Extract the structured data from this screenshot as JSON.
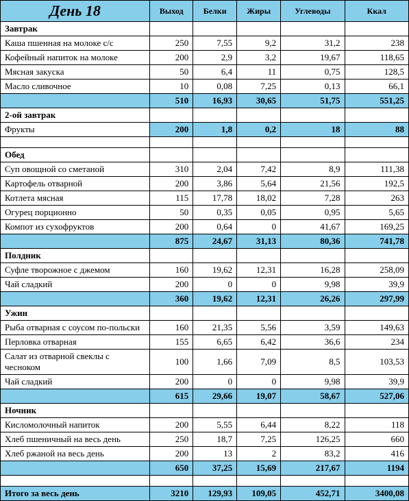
{
  "title": "День 18",
  "columns": [
    "Выход",
    "Белки",
    "Жиры",
    "Углеводы",
    "Ккал"
  ],
  "colors": {
    "highlight_bg": "#87ceeb",
    "border": "#000000",
    "text": "#000000"
  },
  "meals": [
    {
      "name": "Завтрак",
      "items": [
        {
          "name": "Каша пшенная на молоке с/с",
          "vyhod": "250",
          "belki": "7,55",
          "zhiry": "9,2",
          "uglevody": "31,2",
          "kkal": "238"
        },
        {
          "name": "Кофейный напиток на молоке",
          "vyhod": "200",
          "belki": "2,9",
          "zhiry": "3,2",
          "uglevody": "19,67",
          "kkal": "118,65"
        },
        {
          "name": "Мясная закуска",
          "vyhod": "50",
          "belki": "6,4",
          "zhiry": "11",
          "uglevody": "0,75",
          "kkal": "128,5"
        },
        {
          "name": "Масло сливочное",
          "vyhod": "10",
          "belki": "0,08",
          "zhiry": "7,25",
          "uglevody": "0,13",
          "kkal": "66,1"
        }
      ],
      "subtotal": {
        "vyhod": "510",
        "belki": "16,93",
        "zhiry": "30,65",
        "uglevody": "51,75",
        "kkal": "551,25"
      }
    },
    {
      "name": "2-ой завтрак",
      "items": [
        {
          "name": "Фрукты",
          "vyhod": "200",
          "belki": "1,8",
          "zhiry": "0,2",
          "uglevody": "18",
          "kkal": "88",
          "subtotal_style": true
        }
      ],
      "subtotal": null,
      "empty_after": true
    },
    {
      "name": "Обед",
      "items": [
        {
          "name": "Суп овощной со сметаной",
          "vyhod": "310",
          "belki": "2,04",
          "zhiry": "7,42",
          "uglevody": "8,9",
          "kkal": "111,38"
        },
        {
          "name": "Картофель отварной",
          "vyhod": "200",
          "belki": "3,86",
          "zhiry": "5,64",
          "uglevody": "21,56",
          "kkal": "192,5"
        },
        {
          "name": "Котлета мясная",
          "vyhod": "115",
          "belki": "17,78",
          "zhiry": "18,02",
          "uglevody": "7,28",
          "kkal": "263"
        },
        {
          "name": "Огурец  порционно",
          "vyhod": "50",
          "belki": "0,35",
          "zhiry": "0,05",
          "uglevody": "0,95",
          "kkal": "5,65"
        },
        {
          "name": "Компот из сухофруктов",
          "vyhod": "200",
          "belki": "0,64",
          "zhiry": "0",
          "uglevody": "41,67",
          "kkal": "169,25"
        }
      ],
      "subtotal": {
        "vyhod": "875",
        "belki": "24,67",
        "zhiry": "31,13",
        "uglevody": "80,36",
        "kkal": "741,78"
      }
    },
    {
      "name": "Полдник",
      "items": [
        {
          "name": "Суфле творожное с джемом",
          "vyhod": "160",
          "belki": "19,62",
          "zhiry": "12,31",
          "uglevody": "16,28",
          "kkal": "258,09"
        },
        {
          "name": "Чай сладкий",
          "vyhod": "200",
          "belki": "0",
          "zhiry": "0",
          "uglevody": "9,98",
          "kkal": "39,9"
        }
      ],
      "subtotal": {
        "vyhod": "360",
        "belki": "19,62",
        "zhiry": "12,31",
        "uglevody": "26,26",
        "kkal": "297,99"
      }
    },
    {
      "name": "Ужин",
      "items": [
        {
          "name": "Рыба отварная с соусом по-польски",
          "vyhod": "160",
          "belki": "21,35",
          "zhiry": "5,56",
          "uglevody": "3,59",
          "kkal": "149,63"
        },
        {
          "name": "Перловка отварная",
          "vyhod": "155",
          "belki": "6,65",
          "zhiry": "6,42",
          "uglevody": "36,6",
          "kkal": "234"
        },
        {
          "name": "Салат из отварной свеклы с чесноком",
          "vyhod": "100",
          "belki": "1,66",
          "zhiry": "7,09",
          "uglevody": "8,5",
          "kkal": "103,53"
        },
        {
          "name": "Чай сладкий",
          "vyhod": "200",
          "belki": "0",
          "zhiry": "0",
          "uglevody": "9,98",
          "kkal": "39,9"
        }
      ],
      "subtotal": {
        "vyhod": "615",
        "belki": "29,66",
        "zhiry": "19,07",
        "uglevody": "58,67",
        "kkal": "527,06"
      }
    },
    {
      "name": "Ночник",
      "items": [
        {
          "name": "Кисломолочный напиток",
          "vyhod": "200",
          "belki": "5,55",
          "zhiry": "6,44",
          "uglevody": "8,22",
          "kkal": "118"
        },
        {
          "name": "Хлеб пшеничный на весь день",
          "vyhod": "250",
          "belki": "18,7",
          "zhiry": "7,25",
          "uglevody": "126,25",
          "kkal": "660"
        },
        {
          "name": "Хлеб ржаной на весь день",
          "vyhod": "200",
          "belki": "13",
          "zhiry": "2",
          "uglevody": "83,2",
          "kkal": "416"
        }
      ],
      "subtotal": {
        "vyhod": "650",
        "belki": "37,25",
        "zhiry": "15,69",
        "uglevody": "217,67",
        "kkal": "1194"
      },
      "empty_after": true
    }
  ],
  "grand_total": {
    "label": "Итого за весь день",
    "vyhod": "3210",
    "belki": "129,93",
    "zhiry": "109,05",
    "uglevody": "452,71",
    "kkal": "3400,08"
  }
}
